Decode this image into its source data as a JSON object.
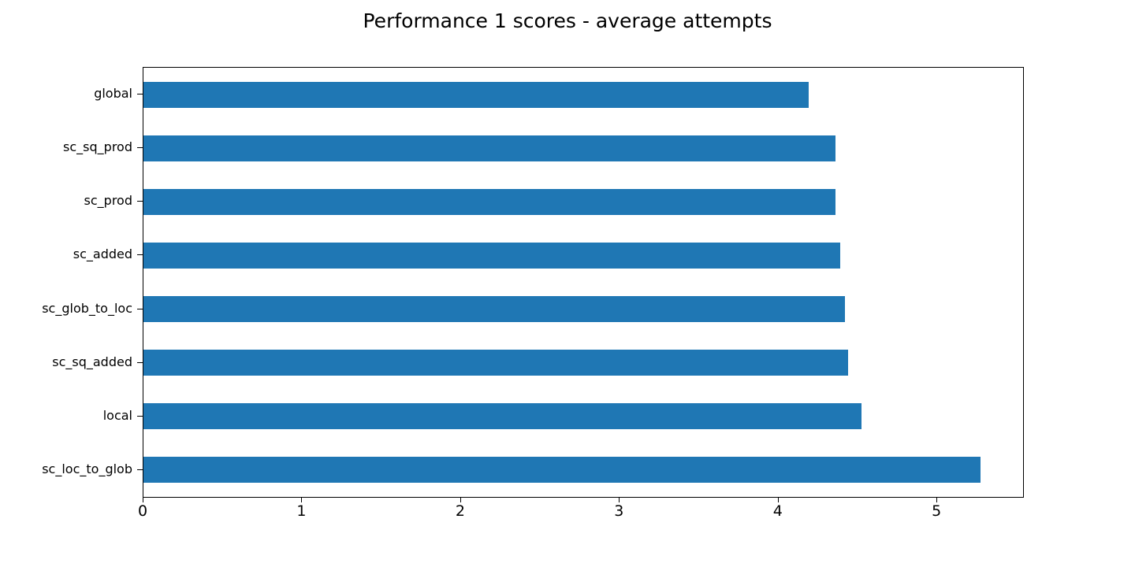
{
  "chart_data": {
    "type": "bar",
    "orientation": "horizontal",
    "title": "Performance 1 scores - average attempts",
    "categories": [
      "global",
      "sc_sq_prod",
      "sc_prod",
      "sc_added",
      "sc_glob_to_loc",
      "sc_sq_added",
      "local",
      "sc_loc_to_glob"
    ],
    "values": [
      4.19,
      4.36,
      4.36,
      4.39,
      4.42,
      4.44,
      4.52,
      5.27
    ],
    "xlabel": "",
    "ylabel": "",
    "xlim": [
      0,
      5.54
    ],
    "xticks": [
      0,
      1,
      2,
      3,
      4,
      5
    ],
    "bar_color": "#1f77b4",
    "grid": false,
    "legend": null
  }
}
